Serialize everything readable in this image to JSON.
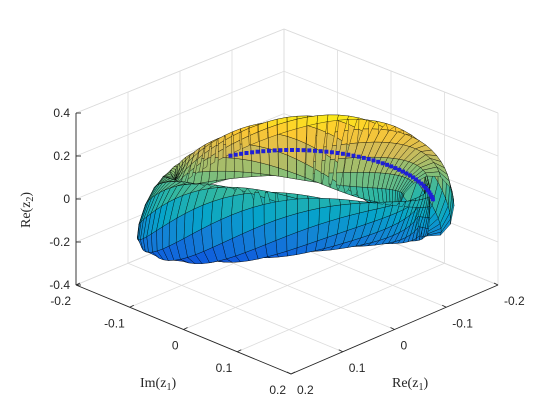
{
  "chart_data": {
    "type": "surface",
    "title": "",
    "projection": "3d-perspective",
    "grid": true,
    "box": "open-back-panels",
    "colormap": "parula",
    "xlabel": {
      "main": "Re(z",
      "sub": "1",
      "close": ")"
    },
    "ylabel": {
      "main": "Im(z",
      "sub": "1",
      "close": ")"
    },
    "zlabel": {
      "main": "Re(z",
      "sub": "2",
      "close": ")"
    },
    "xlim": [
      -0.2,
      0.2
    ],
    "ylim": [
      -0.2,
      0.2
    ],
    "zlim": [
      -0.4,
      0.4
    ],
    "x_ticks": [
      {
        "value": -0.2,
        "label": "-0.2"
      },
      {
        "value": -0.1,
        "label": "-0.1"
      },
      {
        "value": 0,
        "label": "0"
      },
      {
        "value": 0.1,
        "label": "0.1"
      },
      {
        "value": 0.2,
        "label": "0.2"
      }
    ],
    "y_ticks": [
      {
        "value": -0.2,
        "label": "-0.2"
      },
      {
        "value": -0.1,
        "label": "-0.1"
      },
      {
        "value": 0,
        "label": "0"
      },
      {
        "value": 0.1,
        "label": "0.1"
      },
      {
        "value": 0.2,
        "label": "0.2"
      }
    ],
    "z_ticks": [
      {
        "value": -0.4,
        "label": "-0.4"
      },
      {
        "value": -0.2,
        "label": "-0.2"
      },
      {
        "value": 0,
        "label": "0"
      },
      {
        "value": 0.2,
        "label": "0.2"
      },
      {
        "value": 0.4,
        "label": "0.4"
      }
    ],
    "surface": {
      "shape": "twisted torus-like surface, Re(z2) plotted over the (Re(z1), Im(z1)) plane",
      "edge_color": "#000000",
      "colors": [
        "#352a87",
        "#0f5cdd",
        "#1481d6",
        "#06a4ca",
        "#2eb7a4",
        "#87bf77",
        "#d1bb59",
        "#fec832",
        "#f9fb0e"
      ]
    },
    "highlight_curve": {
      "color": "#1f1fd6",
      "marker": "filled-square"
    }
  }
}
